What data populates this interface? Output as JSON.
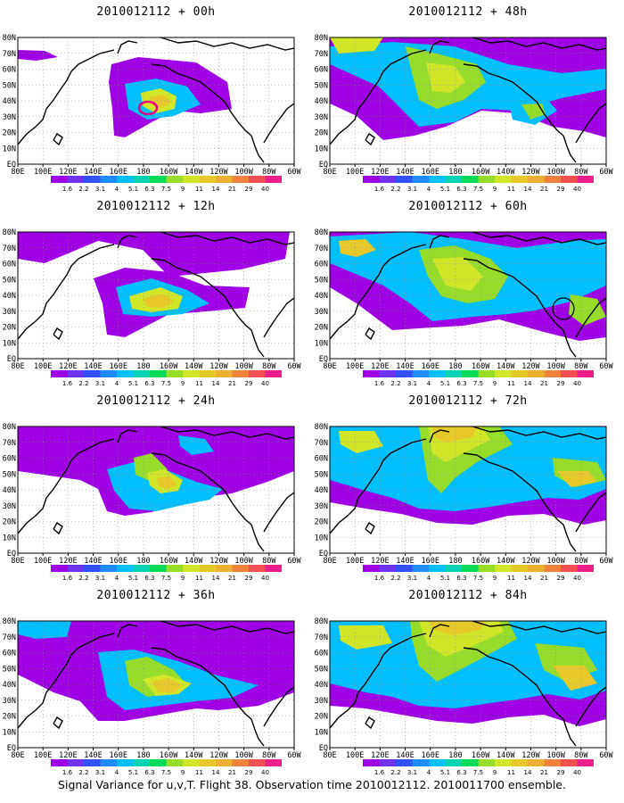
{
  "colorbar": {
    "labels": [
      "1.6",
      "2.2",
      "3.1",
      "4",
      "5.1",
      "6.3",
      "7.5",
      "9",
      "11",
      "14",
      "21",
      "29",
      "40"
    ],
    "colors": [
      "#a000e6",
      "#6e32f0",
      "#3250ff",
      "#1e8cff",
      "#00bfff",
      "#00d2b4",
      "#00dc5a",
      "#96dc28",
      "#d2e628",
      "#e6c828",
      "#ebaf32",
      "#f0823c",
      "#f05050",
      "#eb1e8c"
    ]
  },
  "axes": {
    "lon_labels": [
      "80E",
      "100E",
      "120E",
      "140E",
      "160E",
      "180",
      "160W",
      "140W",
      "120W",
      "100W",
      "80W",
      "60W"
    ],
    "lat_labels": [
      "80N",
      "70N",
      "60N",
      "50N",
      "40N",
      "30N",
      "20N",
      "10N",
      "EQ"
    ]
  },
  "panels": [
    {
      "title": "2010012112 + 00h"
    },
    {
      "title": "2010012112 + 48h"
    },
    {
      "title": "2010012112 + 12h"
    },
    {
      "title": "2010012112 + 60h"
    },
    {
      "title": "2010012112 + 24h"
    },
    {
      "title": "2010012112 + 72h"
    },
    {
      "title": "2010012112 + 36h"
    },
    {
      "title": "2010012112 + 84h"
    }
  ],
  "caption": "Signal Variance for u,v,T. Flight 38. Observation time 2010012112. 2010011700 ensemble."
}
